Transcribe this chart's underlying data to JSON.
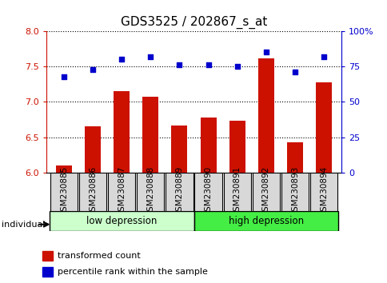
{
  "title": "GDS3525 / 202867_s_at",
  "samples": [
    "GSM230885",
    "GSM230886",
    "GSM230887",
    "GSM230888",
    "GSM230889",
    "GSM230890",
    "GSM230891",
    "GSM230892",
    "GSM230893",
    "GSM230894"
  ],
  "bar_values": [
    6.1,
    6.65,
    7.15,
    7.07,
    6.67,
    6.78,
    6.73,
    7.62,
    6.43,
    7.28
  ],
  "dot_values": [
    68,
    73,
    80,
    82,
    76,
    76,
    75,
    85,
    71,
    82
  ],
  "ylim_left": [
    6.0,
    8.0
  ],
  "ylim_right": [
    0,
    100
  ],
  "yticks_left": [
    6.0,
    6.5,
    7.0,
    7.5,
    8.0
  ],
  "yticks_right": [
    0,
    25,
    50,
    75,
    100
  ],
  "yticklabels_right": [
    "0",
    "25",
    "50",
    "75",
    "100%"
  ],
  "bar_color": "#cc1100",
  "dot_color": "#0000cc",
  "bar_bottom": 6.0,
  "group1_label": "low depression",
  "group2_label": "high depression",
  "group1_count": 5,
  "group2_count": 5,
  "legend_bar_label": "transformed count",
  "legend_dot_label": "percentile rank within the sample",
  "individual_label": "individual",
  "group1_color": "#ccffcc",
  "group2_color": "#44ee44",
  "tick_label_fontsize": 7.5,
  "title_fontsize": 11,
  "axis_left_color": "#cc1100",
  "axis_right_color": "#0000cc",
  "sample_cell_color": "#d8d8d8"
}
